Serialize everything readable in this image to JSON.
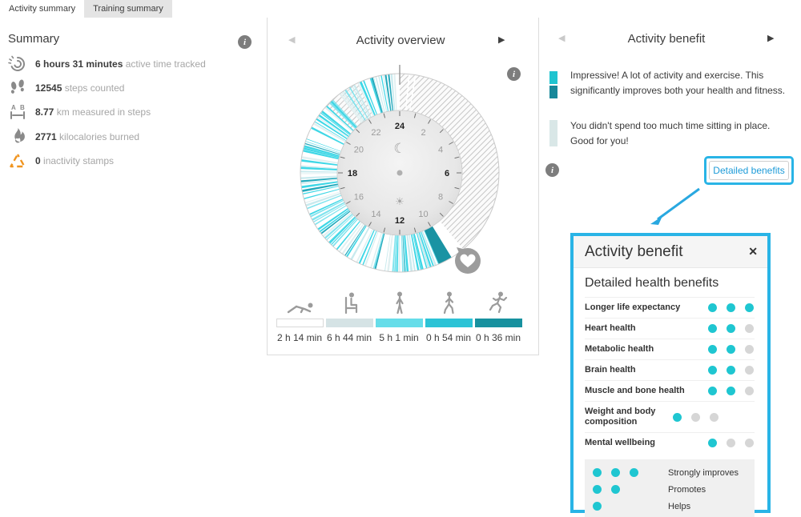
{
  "tabs": [
    {
      "label": "Activity summary",
      "active": true
    },
    {
      "label": "Training summary",
      "active": false
    }
  ],
  "summary": {
    "title": "Summary",
    "stats": [
      {
        "icon": "active-time-icon",
        "value": "6 hours 31 minutes",
        "label": "active time tracked"
      },
      {
        "icon": "steps-icon",
        "value": "12545",
        "label": "steps counted"
      },
      {
        "icon": "distance-icon",
        "value": "8.77",
        "label": "km measured in steps"
      },
      {
        "icon": "calories-icon",
        "value": "2771",
        "label": "kilocalories burned"
      },
      {
        "icon": "inactivity-icon",
        "value": "0",
        "label": "inactivity stamps"
      }
    ]
  },
  "activity_overview": {
    "title": "Activity overview",
    "prev_arrow": "◀",
    "next_arrow": "▶",
    "bars": [
      {
        "name": "resting",
        "duration": "2 h 14 min",
        "color": "#ffffff",
        "border": true
      },
      {
        "name": "sitting",
        "duration": "6 h 44 min",
        "color": "#d5e3e5",
        "border": false
      },
      {
        "name": "standing",
        "duration": "5 h 1 min",
        "color": "#66dde9",
        "border": false
      },
      {
        "name": "walking",
        "duration": "0 h 54 min",
        "color": "#2cc3d6",
        "border": false
      },
      {
        "name": "running",
        "duration": "0 h 36 min",
        "color": "#17919f",
        "border": false
      }
    ]
  },
  "clock": {
    "moon_glyph": "☾",
    "sun_glyph": "☀",
    "hour_labels": [
      {
        "t": "24",
        "b": 1
      },
      {
        "t": "2",
        "b": 0
      },
      {
        "t": "4",
        "b": 0
      },
      {
        "t": "6",
        "b": 1
      },
      {
        "t": "8",
        "b": 0
      },
      {
        "t": "10",
        "b": 0
      },
      {
        "t": "12",
        "b": 1
      },
      {
        "t": "14",
        "b": 0
      },
      {
        "t": "16",
        "b": 0
      },
      {
        "t": "18",
        "b": 1
      },
      {
        "t": "20",
        "b": 0
      },
      {
        "t": "22",
        "b": 0
      }
    ],
    "hatch_sectors": [
      [
        0,
        9.35
      ],
      [
        20.85,
        22.35
      ]
    ],
    "white_sectors": [
      [
        9.35,
        9.9
      ],
      [
        19.35,
        19.72
      ]
    ],
    "white_slits": [
      [
        0.34,
        0.4
      ],
      [
        0.58,
        0.64
      ]
    ],
    "training_sector": [
      9.9,
      10.45
    ],
    "training_color": "#1a93a3",
    "stripe_range": [
      10.45,
      23.98
    ],
    "stripe_palette": [
      [
        "#3fd7e6",
        0.3
      ],
      [
        "#83e4ee",
        0.18
      ],
      [
        "#c9eaee",
        0.16
      ],
      [
        "#e1f0f1",
        0.12
      ],
      [
        "#24a9bc",
        0.06
      ],
      [
        null,
        0.18
      ]
    ]
  },
  "activity_benefit": {
    "title": "Activity benefit",
    "prev_arrow": "◀",
    "next_arrow": "▶",
    "messages": [
      {
        "swatches": [
          "#1fc4d0",
          "#17889a"
        ],
        "text": "Impressive! A lot of activity and exercise. This significantly improves both your health and fitness."
      },
      {
        "swatches": [
          "#d9e7e7"
        ],
        "text": "You didn't spend too much time sitting in place. Good for you!"
      }
    ],
    "button_label": "Detailed benefits"
  },
  "popup": {
    "title": "Activity benefit",
    "close_glyph": "✕",
    "subtitle": "Detailed health benefits",
    "rows": [
      {
        "label": "Longer life expectancy",
        "dots": [
          1,
          1,
          1
        ]
      },
      {
        "label": "Heart health",
        "dots": [
          1,
          1,
          0
        ]
      },
      {
        "label": "Metabolic health",
        "dots": [
          1,
          1,
          0
        ]
      },
      {
        "label": "Brain health",
        "dots": [
          1,
          1,
          0
        ]
      },
      {
        "label": "Muscle and bone health",
        "dots": [
          1,
          1,
          0
        ]
      },
      {
        "label": "Weight and body composition",
        "dots": [
          1,
          0,
          0
        ]
      },
      {
        "label": "Mental wellbeing",
        "dots": [
          1,
          0,
          0
        ]
      }
    ],
    "legend": [
      {
        "dots": [
          1,
          1,
          1
        ],
        "label": "Strongly improves"
      },
      {
        "dots": [
          1,
          1
        ],
        "label": "Promotes"
      },
      {
        "dots": [
          1
        ],
        "label": "Helps"
      }
    ]
  },
  "colors": {
    "annotation_highlight": "#29b4e6",
    "dot_on": "#1fc6d1",
    "dot_off": "#d6d6d6",
    "inactivity_orange": "#f0941e",
    "icon_gray": "#8a8a8a"
  }
}
